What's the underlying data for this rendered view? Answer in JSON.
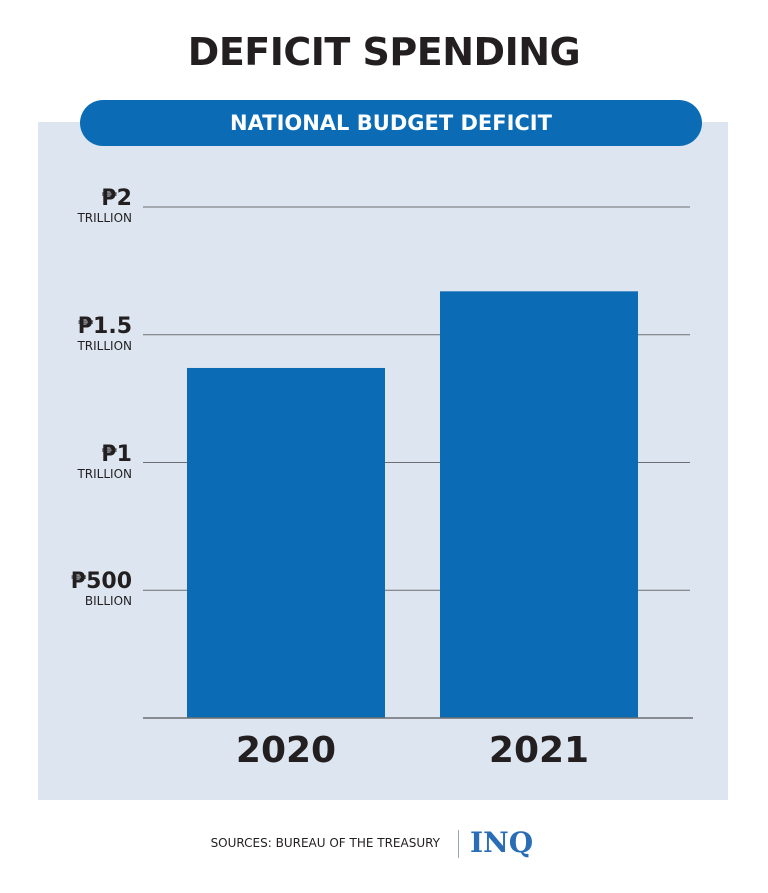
{
  "title": "DEFICIT SPENDING",
  "chart_data": {
    "type": "bar",
    "title": "NATIONAL BUDGET DEFICIT",
    "categories": [
      "2020",
      "2021"
    ],
    "values": [
      1370,
      1670
    ],
    "color": "#0b6cb5",
    "ylim": [
      0,
      2000
    ],
    "yticks": [
      {
        "value": 500,
        "label": "₱500\nBILLION"
      },
      {
        "value": 1000,
        "label": "₱1\nTRILLION"
      },
      {
        "value": 1500,
        "label": "₱1.5\nTRILLION"
      },
      {
        "value": 2000,
        "label": "₱2\nTRILLION"
      }
    ],
    "grid": true
  },
  "footer": {
    "source": "SOURCES: BUREAU OF THE TREASURY",
    "logo": "INQ"
  }
}
